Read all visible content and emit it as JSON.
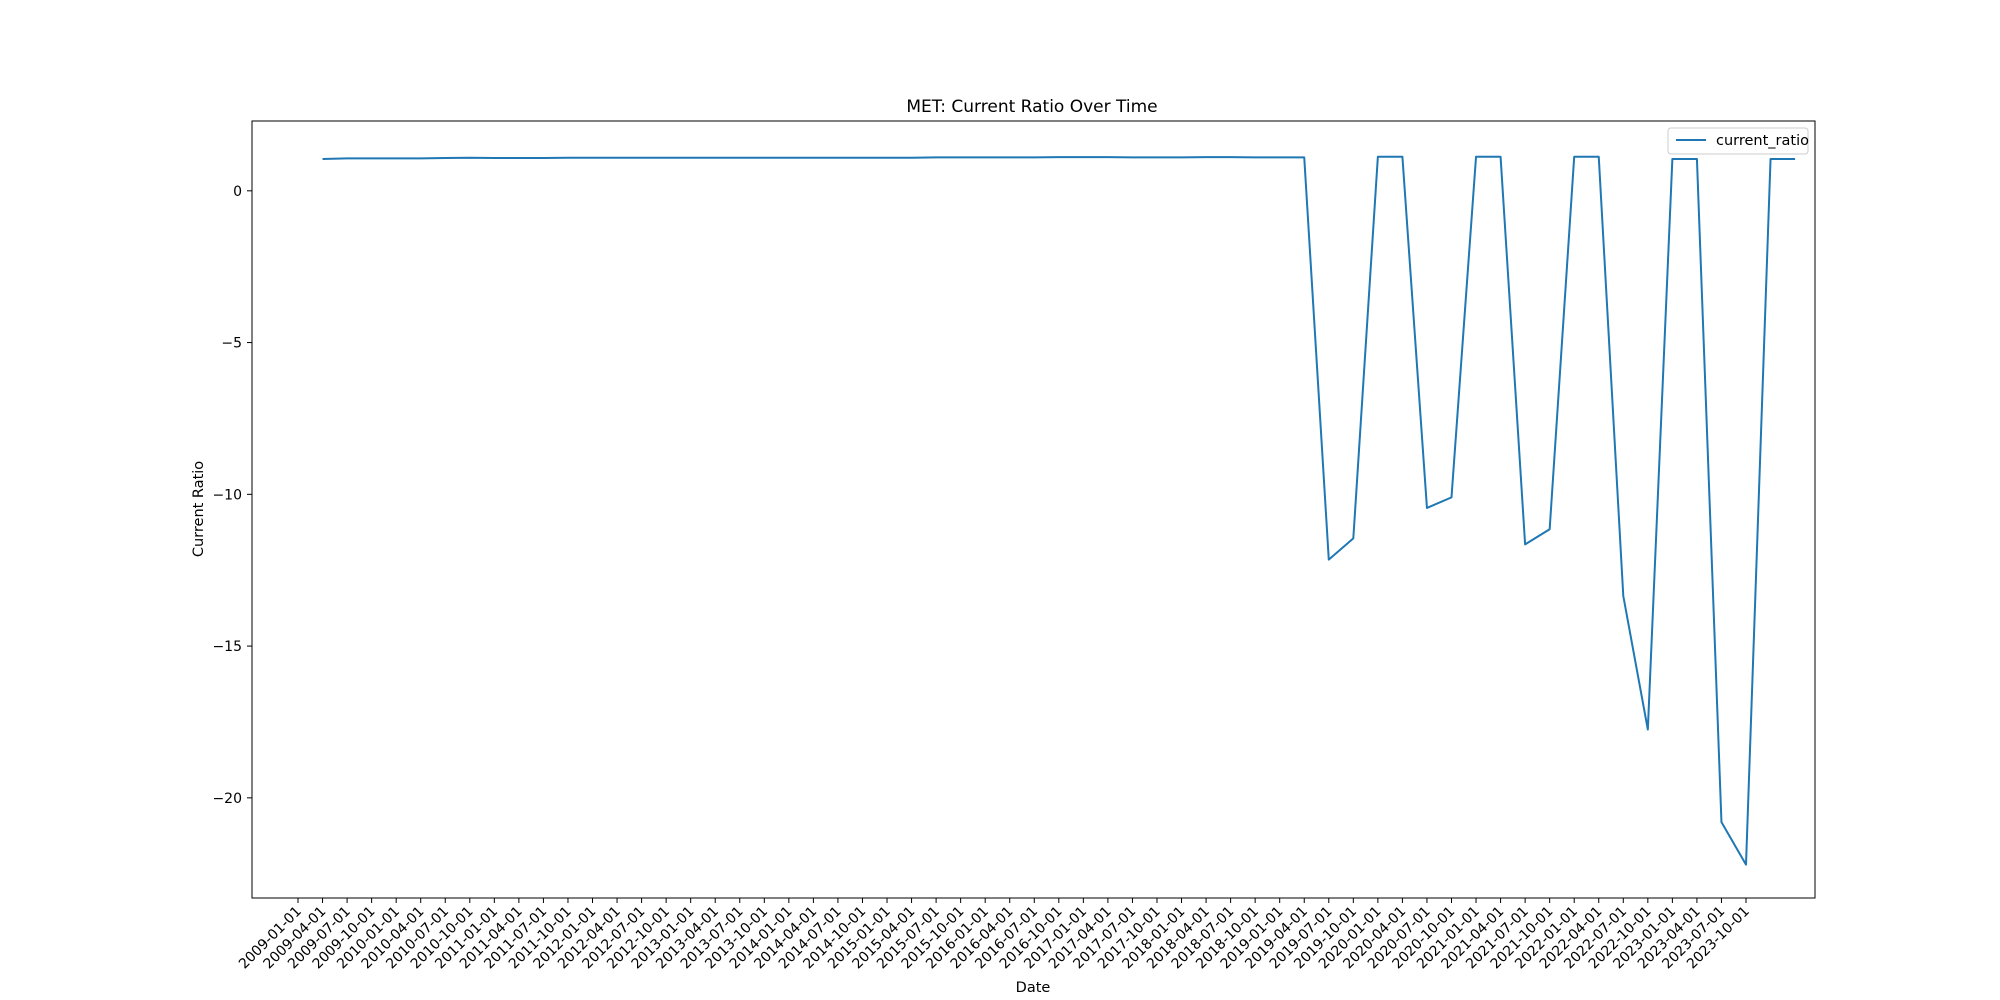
{
  "chart_data": {
    "type": "line",
    "title": "MET: Current Ratio Over Time",
    "xlabel": "Date",
    "ylabel": "Current Ratio",
    "ylim": [
      -23.3,
      2.3
    ],
    "yticks": [
      0,
      -5,
      -10,
      -15,
      -20
    ],
    "ytick_labels": [
      "0",
      "−5",
      "−10",
      "−15",
      "−20"
    ],
    "x_tick_labels": [
      "2009-01-01",
      "2009-04-01",
      "2009-07-01",
      "2009-10-01",
      "2010-01-01",
      "2010-04-01",
      "2010-07-01",
      "2010-10-01",
      "2011-01-01",
      "2011-04-01",
      "2011-07-01",
      "2011-10-01",
      "2012-01-01",
      "2012-04-01",
      "2012-07-01",
      "2012-10-01",
      "2013-01-01",
      "2013-04-01",
      "2013-07-01",
      "2013-10-01",
      "2014-01-01",
      "2014-04-01",
      "2014-07-01",
      "2014-10-01",
      "2015-01-01",
      "2015-04-01",
      "2015-07-01",
      "2015-10-01",
      "2016-01-01",
      "2016-04-01",
      "2016-07-01",
      "2016-10-01",
      "2017-01-01",
      "2017-04-01",
      "2017-07-01",
      "2017-10-01",
      "2018-01-01",
      "2018-04-01",
      "2018-07-01",
      "2018-10-01",
      "2019-01-01",
      "2019-04-01",
      "2019-07-01",
      "2019-10-01",
      "2020-01-01",
      "2020-04-01",
      "2020-07-01",
      "2020-10-01",
      "2021-01-01",
      "2021-04-01",
      "2021-07-01",
      "2021-10-01",
      "2022-01-01",
      "2022-04-01",
      "2022-07-01",
      "2022-10-01",
      "2023-01-01",
      "2023-04-01",
      "2023-07-01",
      "2023-10-01"
    ],
    "legend": {
      "position": "top-right",
      "entries": [
        "current_ratio"
      ]
    },
    "grid": false,
    "series": [
      {
        "name": "current_ratio",
        "color": "#1f77b4",
        "start_index": 1,
        "values": [
          1.05,
          1.07,
          1.07,
          1.07,
          1.07,
          1.08,
          1.09,
          1.08,
          1.08,
          1.08,
          1.09,
          1.09,
          1.09,
          1.09,
          1.09,
          1.09,
          1.09,
          1.09,
          1.09,
          1.09,
          1.09,
          1.09,
          1.09,
          1.09,
          1.09,
          1.1,
          1.1,
          1.1,
          1.1,
          1.1,
          1.11,
          1.11,
          1.11,
          1.1,
          1.1,
          1.1,
          1.11,
          1.11,
          1.1,
          1.1,
          1.1,
          -12.15,
          -11.45,
          1.12,
          1.12,
          -10.45,
          -10.1,
          1.12,
          1.12,
          -11.65,
          -11.15,
          1.12,
          1.12,
          -13.35,
          -17.75,
          1.05,
          1.05,
          -20.8,
          -22.2,
          1.05,
          1.05
        ]
      }
    ]
  }
}
